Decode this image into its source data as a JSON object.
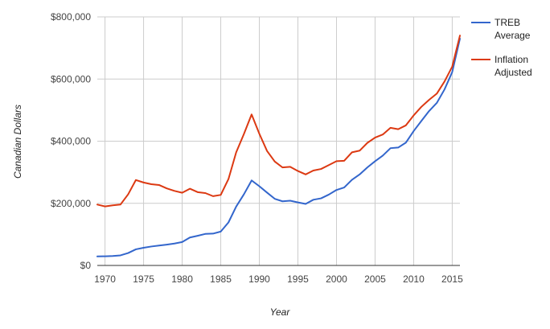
{
  "chart_data": {
    "type": "line",
    "title": "",
    "xlabel": "Year",
    "ylabel": "Canadian Dollars",
    "xlim": [
      1969,
      2016
    ],
    "ylim": [
      0,
      800000
    ],
    "grid": true,
    "legend_position": "right",
    "x_ticks": [
      1970,
      1975,
      1980,
      1985,
      1990,
      1995,
      2000,
      2005,
      2010,
      2015
    ],
    "x_tick_labels": [
      "1970",
      "1975",
      "1980",
      "1985",
      "1990",
      "1995",
      "2000",
      "2005",
      "2010",
      "2015"
    ],
    "y_ticks": [
      0,
      200000,
      400000,
      600000,
      800000
    ],
    "y_tick_labels": [
      "$0",
      "$200,000",
      "$400,000",
      "$600,000",
      "$800,000"
    ],
    "x": [
      1969,
      1970,
      1971,
      1972,
      1973,
      1974,
      1975,
      1976,
      1977,
      1978,
      1979,
      1980,
      1981,
      1982,
      1983,
      1984,
      1985,
      1986,
      1987,
      1988,
      1989,
      1990,
      1991,
      1992,
      1993,
      1994,
      1995,
      1996,
      1997,
      1998,
      1999,
      2000,
      2001,
      2002,
      2003,
      2004,
      2005,
      2006,
      2007,
      2008,
      2009,
      2010,
      2011,
      2012,
      2013,
      2014,
      2015,
      2016
    ],
    "series": [
      {
        "name": "TREB Average",
        "color": "#3366cc",
        "values": [
          29000,
          29500,
          30500,
          32500,
          40000,
          52000,
          57000,
          61000,
          64000,
          67000,
          70500,
          75500,
          90000,
          95500,
          101500,
          102500,
          109000,
          138500,
          189500,
          229000,
          273500,
          255000,
          234500,
          214500,
          206500,
          208500,
          203000,
          198000,
          211500,
          216000,
          228000,
          243000,
          251000,
          275500,
          293000,
          315500,
          335500,
          353500,
          377500,
          379500,
          395500,
          432500,
          465000,
          497000,
          523000,
          566500,
          622500,
          730000
        ]
      },
      {
        "name": "Inflation Adjusted",
        "color": "#dc3912",
        "values": [
          196000,
          190000,
          193500,
          196000,
          229000,
          275000,
          267000,
          261500,
          259000,
          248000,
          240000,
          234000,
          247000,
          236000,
          233000,
          223000,
          227000,
          278000,
          364000,
          423000,
          486000,
          424000,
          368500,
          334500,
          315500,
          317500,
          304000,
          293000,
          305500,
          310500,
          323000,
          335500,
          337000,
          364000,
          369500,
          394500,
          411500,
          421500,
          443000,
          438500,
          451000,
          483000,
          510500,
          533000,
          553000,
          592000,
          640000,
          740000
        ]
      }
    ]
  }
}
